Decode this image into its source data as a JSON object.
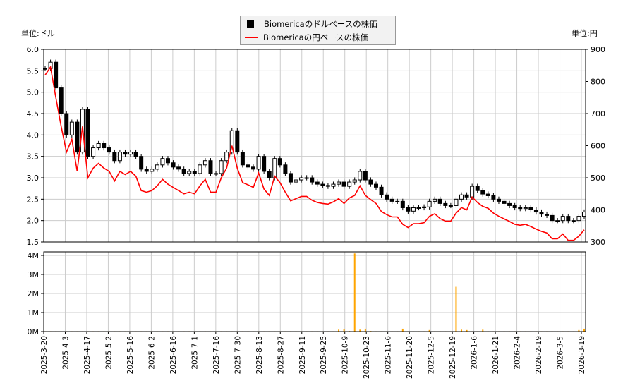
{
  "units": {
    "left": "単位:ドル",
    "right": "単位:円"
  },
  "legend": {
    "usd": "Biomericaのドルベースの株価",
    "jpy": "Biomericaの円ベースの株価"
  },
  "colors": {
    "usd": "#000000",
    "jpy": "#ff0000",
    "volume": "#ffa500",
    "grid": "#cccccc"
  },
  "chart_data": [
    {
      "type": "candlestick+line",
      "y_left": {
        "ticks": [
          "1.5",
          "2.0",
          "2.5",
          "3.0",
          "3.5",
          "4.0",
          "4.5",
          "5.0",
          "5.5",
          "6.0"
        ],
        "range": [
          1.5,
          6.0
        ]
      },
      "y_right": {
        "ticks": [
          "300",
          "400",
          "500",
          "600",
          "700",
          "800",
          "900"
        ],
        "range": [
          300,
          900
        ]
      },
      "x_range": [
        "2025-3-20",
        "2026-3-19"
      ],
      "grid": true,
      "legend_position": "top-center",
      "series": [
        {
          "name": "Biomericaのドルベースの株価",
          "close": [
            5.55,
            5.7,
            5.1,
            4.5,
            4.0,
            4.3,
            3.6,
            4.6,
            3.5,
            3.7,
            3.8,
            3.7,
            3.6,
            3.4,
            3.6,
            3.55,
            3.6,
            3.5,
            3.2,
            3.15,
            3.2,
            3.3,
            3.45,
            3.35,
            3.25,
            3.2,
            3.1,
            3.15,
            3.1,
            3.3,
            3.4,
            3.1,
            3.1,
            3.4,
            3.6,
            4.1,
            3.6,
            3.3,
            3.25,
            3.2,
            3.5,
            3.15,
            3.0,
            3.45,
            3.3,
            3.1,
            2.9,
            2.95,
            3.0,
            3.0,
            2.9,
            2.85,
            2.82,
            2.8,
            2.85,
            2.9,
            2.8,
            2.9,
            2.95,
            3.15,
            2.95,
            2.85,
            2.78,
            2.6,
            2.5,
            2.45,
            2.45,
            2.3,
            2.22,
            2.3,
            2.3,
            2.32,
            2.45,
            2.5,
            2.4,
            2.35,
            2.35,
            2.5,
            2.6,
            2.55,
            2.8,
            2.7,
            2.62,
            2.58,
            2.5,
            2.45,
            2.4,
            2.35,
            2.3,
            2.28,
            2.3,
            2.25,
            2.2,
            2.15,
            2.12,
            2.0,
            2.0,
            2.1,
            2.0,
            2.0,
            2.1,
            2.2
          ]
        },
        {
          "name": "Biomericaの円ベースの株価",
          "values": [
            820,
            845,
            750,
            660,
            580,
            620,
            520,
            660,
            500,
            530,
            545,
            530,
            520,
            490,
            520,
            510,
            520,
            505,
            460,
            455,
            460,
            475,
            495,
            480,
            470,
            460,
            450,
            455,
            450,
            475,
            495,
            455,
            455,
            500,
            530,
            600,
            530,
            485,
            478,
            470,
            515,
            465,
            445,
            505,
            485,
            455,
            428,
            435,
            442,
            442,
            430,
            423,
            420,
            418,
            425,
            435,
            420,
            437,
            445,
            475,
            445,
            432,
            420,
            395,
            385,
            378,
            378,
            355,
            345,
            357,
            357,
            360,
            380,
            388,
            373,
            365,
            365,
            390,
            407,
            400,
            440,
            423,
            411,
            405,
            390,
            380,
            372,
            364,
            355,
            352,
            355,
            348,
            340,
            333,
            328,
            310,
            310,
            325,
            305,
            305,
            318,
            338
          ]
        }
      ]
    },
    {
      "type": "bar",
      "y": {
        "ticks": [
          "0M",
          "1M",
          "2M",
          "3M",
          "4M"
        ],
        "range": [
          0,
          4
        ]
      },
      "values_millions": [
        0.02,
        0.02,
        0.02,
        0.02,
        0.02,
        0.02,
        0.02,
        0.02,
        0.02,
        0.02,
        0.02,
        0.02,
        0.02,
        0.02,
        0.02,
        0.02,
        0.02,
        0.02,
        0.02,
        0.02,
        0.02,
        0.02,
        0.02,
        0.02,
        0.02,
        0.02,
        0.02,
        0.02,
        0.02,
        0.02,
        0.02,
        0.02,
        0.02,
        0.02,
        0.02,
        0.02,
        0.02,
        0.02,
        0.02,
        0.02,
        0.02,
        0.02,
        0.02,
        0.02,
        0.02,
        0.02,
        0.02,
        0.02,
        0.02,
        0.02,
        0.02,
        0.02,
        0.02,
        0.02,
        0.02,
        0.1,
        0.12,
        0.03,
        4.1,
        0.1,
        0.15,
        0.03,
        0.02,
        0.02,
        0.02,
        0.02,
        0.02,
        0.15,
        0.02,
        0.02,
        0.02,
        0.02,
        0.08,
        0.02,
        0.02,
        0.02,
        0.02,
        2.35,
        0.1,
        0.08,
        0.02,
        0.02,
        0.1,
        0.02,
        0.02,
        0.02,
        0.02,
        0.02,
        0.02,
        0.02,
        0.02,
        0.02,
        0.02,
        0.02,
        0.02,
        0.02,
        0.02,
        0.02,
        0.02,
        0.02,
        0.08,
        0.15
      ]
    }
  ],
  "x_ticks": [
    "2025-3-20",
    "2025-4-3",
    "2025-4-17",
    "2025-5-2",
    "2025-5-16",
    "2025-6-2",
    "2025-6-16",
    "2025-7-1",
    "2025-7-16",
    "2025-7-30",
    "2025-8-13",
    "2025-8-27",
    "2025-9-11",
    "2025-9-25",
    "2025-10-9",
    "2025-10-23",
    "2025-11-6",
    "2025-11-20",
    "2025-12-5",
    "2025-12-19",
    "2026-1-6",
    "2026-1-21",
    "2026-2-4",
    "2026-2-19",
    "2026-3-5",
    "2026-3-19"
  ]
}
